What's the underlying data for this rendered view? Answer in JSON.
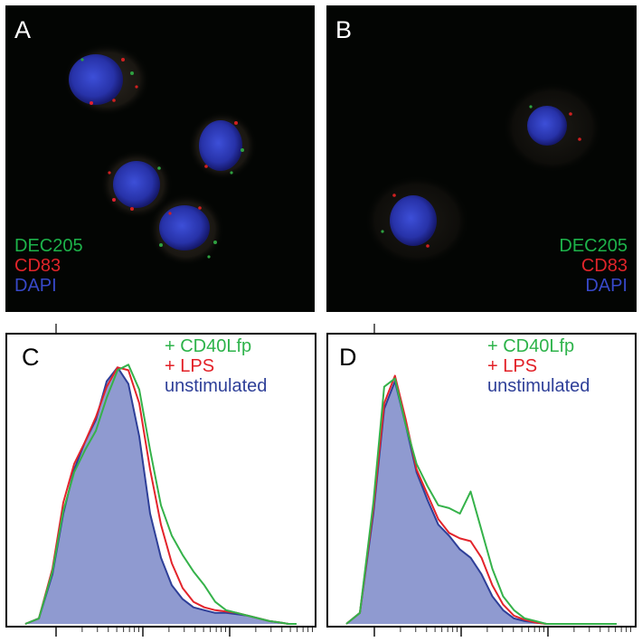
{
  "panels": {
    "A": {
      "label": "A",
      "legend": [
        {
          "text": "DEC205",
          "color": "#1db34a"
        },
        {
          "text": "CD83",
          "color": "#e0242a"
        },
        {
          "text": "DAPI",
          "color": "#3748c8"
        }
      ]
    },
    "B": {
      "label": "B",
      "legend": [
        {
          "text": "DEC205",
          "color": "#1db34a"
        },
        {
          "text": "CD83",
          "color": "#e0242a"
        },
        {
          "text": "DAPI",
          "color": "#3748c8"
        }
      ]
    },
    "C": {
      "label": "C",
      "legend": [
        {
          "text": "+ CD40Lfp",
          "color": "#2db34a"
        },
        {
          "text": "+ LPS",
          "color": "#e21f26"
        },
        {
          "text": "unstimulated",
          "color": "#2e3f98"
        }
      ]
    },
    "D": {
      "label": "D",
      "legend": [
        {
          "text": "+ CD40Lfp",
          "color": "#2db34a"
        },
        {
          "text": "+ LPS",
          "color": "#e21f26"
        },
        {
          "text": "unstimulated",
          "color": "#2e3f98"
        }
      ]
    }
  },
  "colors": {
    "cd40": "#35b24a",
    "lps": "#e3242b",
    "unstim_line": "#2e3f98",
    "unstim_fill": "#8f9ad0"
  },
  "chart_data": [
    {
      "type": "area",
      "panel": "C",
      "xlim": [
        0,
        100
      ],
      "ylim": [
        0,
        1
      ],
      "x": [
        0,
        5,
        10,
        14,
        18,
        22,
        26,
        30,
        34,
        38,
        42,
        46,
        50,
        54,
        58,
        62,
        66,
        70,
        74,
        78,
        82,
        86,
        90,
        94,
        97,
        100
      ],
      "series": [
        {
          "name": "unstimulated",
          "values": [
            0,
            0.02,
            0.18,
            0.4,
            0.56,
            0.66,
            0.74,
            0.88,
            0.93,
            0.87,
            0.68,
            0.4,
            0.24,
            0.14,
            0.09,
            0.06,
            0.05,
            0.04,
            0.04,
            0.035,
            0.03,
            0.02,
            0.01,
            0.005,
            0,
            0
          ]
        },
        {
          "name": "+ LPS",
          "values": [
            0,
            0.02,
            0.2,
            0.44,
            0.58,
            0.66,
            0.75,
            0.86,
            0.93,
            0.92,
            0.8,
            0.56,
            0.36,
            0.22,
            0.13,
            0.08,
            0.06,
            0.05,
            0.045,
            0.04,
            0.03,
            0.02,
            0.01,
            0.005,
            0,
            0
          ]
        },
        {
          "name": "+ CD40Lfp",
          "values": [
            0,
            0.02,
            0.19,
            0.41,
            0.55,
            0.63,
            0.7,
            0.82,
            0.92,
            0.94,
            0.85,
            0.63,
            0.43,
            0.32,
            0.25,
            0.19,
            0.14,
            0.08,
            0.05,
            0.04,
            0.03,
            0.02,
            0.01,
            0.005,
            0,
            0
          ]
        }
      ]
    },
    {
      "type": "area",
      "panel": "D",
      "xlim": [
        0,
        100
      ],
      "ylim": [
        0,
        1
      ],
      "x": [
        0,
        5,
        10,
        14,
        18,
        22,
        26,
        30,
        34,
        38,
        42,
        46,
        50,
        54,
        58,
        62,
        66,
        70,
        74,
        78,
        82,
        86,
        90,
        94,
        97,
        100
      ],
      "series": [
        {
          "name": "unstimulated",
          "values": [
            0,
            0.04,
            0.4,
            0.78,
            0.88,
            0.72,
            0.55,
            0.45,
            0.36,
            0.32,
            0.27,
            0.24,
            0.18,
            0.1,
            0.05,
            0.02,
            0.01,
            0.005,
            0,
            0,
            0,
            0,
            0,
            0,
            0,
            0
          ]
        },
        {
          "name": "+ LPS",
          "values": [
            0,
            0.04,
            0.42,
            0.8,
            0.9,
            0.74,
            0.56,
            0.47,
            0.38,
            0.33,
            0.31,
            0.3,
            0.24,
            0.14,
            0.07,
            0.03,
            0.015,
            0.005,
            0,
            0,
            0,
            0,
            0,
            0,
            0,
            0
          ]
        },
        {
          "name": "+ CD40Lfp",
          "values": [
            0,
            0.04,
            0.44,
            0.86,
            0.89,
            0.72,
            0.58,
            0.5,
            0.43,
            0.42,
            0.4,
            0.48,
            0.34,
            0.2,
            0.1,
            0.05,
            0.02,
            0.01,
            0,
            0,
            0,
            0,
            0,
            0,
            0,
            0
          ]
        }
      ]
    }
  ]
}
